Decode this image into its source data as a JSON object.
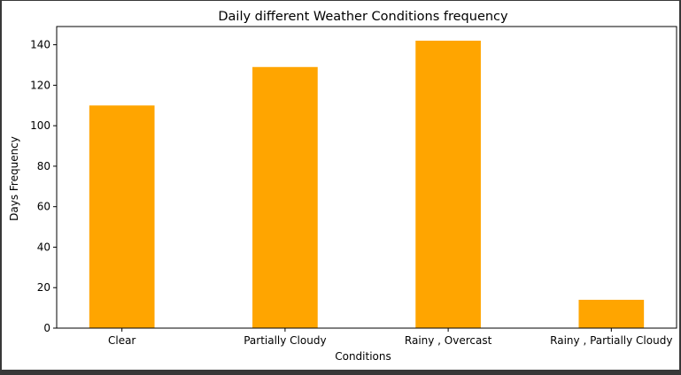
{
  "chart_data": {
    "type": "bar",
    "title": "Daily different Weather Conditions frequency",
    "xlabel": "Conditions",
    "ylabel": "Days Frequency",
    "categories": [
      "Clear",
      "Partially Cloudy",
      "Rainy , Overcast",
      "Rainy , Partially Cloudy"
    ],
    "values": [
      110,
      129,
      142,
      14
    ],
    "ylim": [
      0,
      149
    ],
    "yticks": [
      0,
      20,
      40,
      60,
      80,
      100,
      120,
      140
    ],
    "bar_color": "#ffa500",
    "grid": false,
    "legend": "none"
  }
}
